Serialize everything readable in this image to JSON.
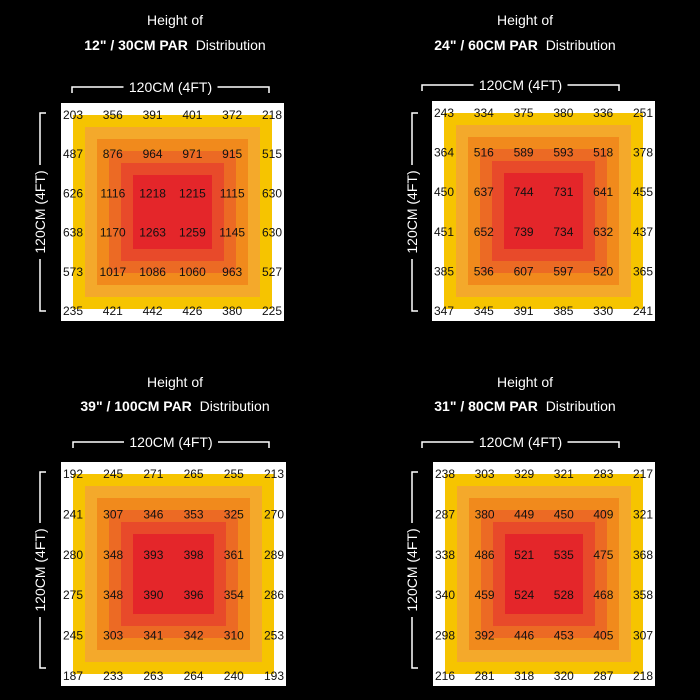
{
  "colors": {
    "background": "#000000",
    "ring_colors": [
      "#ffffff",
      "#f6c400",
      "#f4a92b",
      "#f18a1c",
      "#ec6a24",
      "#e84a2a",
      "#e4262a"
    ]
  },
  "chart_data": [
    {
      "type": "heatmap",
      "title_line1": "Height of",
      "title_bold": "12\" / 30CM PAR",
      "title_suffix": "Distribution",
      "xlabel": "120CM (4FT)",
      "ylabel": "120CM (4FT)",
      "grid": [
        [
          203,
          356,
          391,
          401,
          372,
          218
        ],
        [
          487,
          876,
          964,
          971,
          915,
          515
        ],
        [
          626,
          1116,
          1218,
          1215,
          1115,
          630
        ],
        [
          638,
          1170,
          1263,
          1259,
          1145,
          630
        ],
        [
          573,
          1017,
          1086,
          1060,
          963,
          527
        ],
        [
          235,
          421,
          442,
          426,
          380,
          225
        ]
      ]
    },
    {
      "type": "heatmap",
      "title_line1": "Height of",
      "title_bold": "24\" / 60CM PAR",
      "title_suffix": "Distribution",
      "xlabel": "120CM (4FT)",
      "ylabel": "120CM (4FT)",
      "grid": [
        [
          243,
          334,
          375,
          380,
          336,
          251
        ],
        [
          364,
          516,
          589,
          593,
          518,
          378
        ],
        [
          450,
          637,
          744,
          731,
          641,
          455
        ],
        [
          451,
          652,
          739,
          734,
          632,
          437
        ],
        [
          385,
          536,
          607,
          597,
          520,
          365
        ],
        [
          347,
          345,
          391,
          385,
          330,
          241
        ]
      ]
    },
    {
      "type": "heatmap",
      "title_line1": "Height of",
      "title_bold": "39\" / 100CM PAR",
      "title_suffix": "Distribution",
      "xlabel": "120CM (4FT)",
      "ylabel": "120CM (4FT)",
      "grid": [
        [
          192,
          245,
          271,
          265,
          255,
          213
        ],
        [
          241,
          307,
          346,
          353,
          325,
          270
        ],
        [
          280,
          348,
          393,
          398,
          361,
          289
        ],
        [
          275,
          348,
          390,
          396,
          354,
          286
        ],
        [
          245,
          303,
          341,
          342,
          310,
          253
        ],
        [
          187,
          233,
          263,
          264,
          240,
          193
        ]
      ]
    },
    {
      "type": "heatmap",
      "title_line1": "Height of",
      "title_bold": "31\" / 80CM PAR",
      "title_suffix": "Distribution",
      "xlabel": "120CM (4FT)",
      "ylabel": "120CM (4FT)",
      "grid": [
        [
          238,
          303,
          329,
          321,
          283,
          217
        ],
        [
          287,
          380,
          449,
          450,
          409,
          321
        ],
        [
          338,
          486,
          521,
          535,
          475,
          368
        ],
        [
          340,
          459,
          524,
          528,
          468,
          358
        ],
        [
          298,
          392,
          446,
          453,
          405,
          307
        ],
        [
          216,
          281,
          318,
          320,
          287,
          218
        ]
      ]
    }
  ]
}
